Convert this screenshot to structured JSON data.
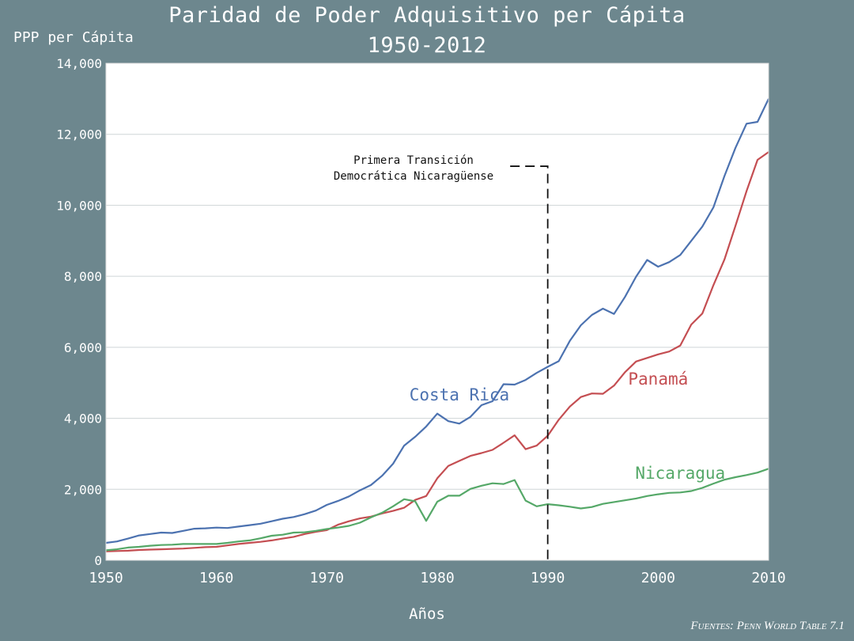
{
  "title_line1": "Paridad de Poder Adquisitivo per Cápita",
  "title_line2": "1950-2012",
  "ylabel": "PPP per Cápita",
  "xlabel": "Años",
  "source": "Fuentes: Penn World Table 7.1",
  "annotation": {
    "line1": "Primera Transición",
    "line2": "Democrática Nicaragüense",
    "x": 1990
  },
  "colors": {
    "background": "#6d878e",
    "plot_bg": "#ffffff",
    "grid": "#cfd5d7",
    "costa_rica": "#4c72b0",
    "panama": "#c44e52",
    "nicaragua": "#55a868",
    "text": "#ffffff"
  },
  "chart_data": {
    "type": "line",
    "xlim": [
      1950,
      2010
    ],
    "ylim": [
      0,
      14000
    ],
    "xticks": [
      "1950",
      "1960",
      "1970",
      "1980",
      "1990",
      "2000",
      "2010"
    ],
    "yticks": [
      "0",
      "2,000",
      "4,000",
      "6,000",
      "8,000",
      "10,000",
      "12,000",
      "14,000"
    ],
    "grid": "horizontal",
    "x": [
      1950,
      1951,
      1952,
      1953,
      1954,
      1955,
      1956,
      1957,
      1958,
      1959,
      1960,
      1961,
      1962,
      1963,
      1964,
      1965,
      1966,
      1967,
      1968,
      1969,
      1970,
      1971,
      1972,
      1973,
      1974,
      1975,
      1976,
      1977,
      1978,
      1979,
      1980,
      1981,
      1982,
      1983,
      1984,
      1985,
      1986,
      1987,
      1988,
      1989,
      1990,
      1991,
      1992,
      1993,
      1994,
      1995,
      1996,
      1997,
      1998,
      1999,
      2000,
      2001,
      2002,
      2003,
      2004,
      2005,
      2006,
      2007,
      2008,
      2009,
      2010
    ],
    "series": [
      {
        "name": "Costa Rica",
        "color_key": "costa_rica",
        "values": [
          490,
          530,
          610,
          700,
          740,
          780,
          770,
          830,
          890,
          900,
          920,
          910,
          950,
          990,
          1030,
          1100,
          1170,
          1220,
          1300,
          1400,
          1560,
          1670,
          1800,
          1970,
          2120,
          2380,
          2720,
          3230,
          3480,
          3770,
          4130,
          3920,
          3850,
          4040,
          4370,
          4480,
          4960,
          4950,
          5080,
          5280,
          5450,
          5610,
          6180,
          6620,
          6910,
          7090,
          6940,
          7420,
          7990,
          8460,
          8270,
          8400,
          8600,
          9000,
          9400,
          9940,
          10820,
          11620,
          12300,
          12350,
          13000
        ],
        "label_at": [
          1982,
          4500
        ]
      },
      {
        "name": "Panamá",
        "color_key": "panama",
        "values": [
          250,
          260,
          270,
          290,
          300,
          310,
          320,
          330,
          350,
          370,
          380,
          420,
          460,
          490,
          520,
          560,
          610,
          660,
          740,
          800,
          850,
          1000,
          1100,
          1180,
          1230,
          1320,
          1390,
          1480,
          1700,
          1810,
          2310,
          2660,
          2800,
          2940,
          3020,
          3110,
          3310,
          3520,
          3130,
          3230,
          3510,
          3960,
          4330,
          4600,
          4700,
          4690,
          4920,
          5300,
          5600,
          5700,
          5800,
          5880,
          6050,
          6640,
          6950,
          7750,
          8470,
          9420,
          10400,
          11280,
          11500
        ],
        "label_at": [
          2000,
          4950
        ]
      },
      {
        "name": "Nicaragua",
        "color_key": "nicaragua",
        "values": [
          280,
          310,
          360,
          380,
          410,
          430,
          440,
          460,
          460,
          460,
          460,
          490,
          530,
          560,
          620,
          690,
          720,
          780,
          790,
          830,
          880,
          920,
          970,
          1060,
          1210,
          1340,
          1520,
          1720,
          1660,
          1110,
          1650,
          1820,
          1820,
          2010,
          2100,
          2170,
          2150,
          2260,
          1680,
          1520,
          1580,
          1550,
          1510,
          1460,
          1500,
          1590,
          1640,
          1690,
          1740,
          1810,
          1860,
          1900,
          1910,
          1950,
          2040,
          2160,
          2270,
          2340,
          2400,
          2470,
          2580
        ],
        "label_at": [
          2002,
          2300
        ]
      }
    ]
  }
}
